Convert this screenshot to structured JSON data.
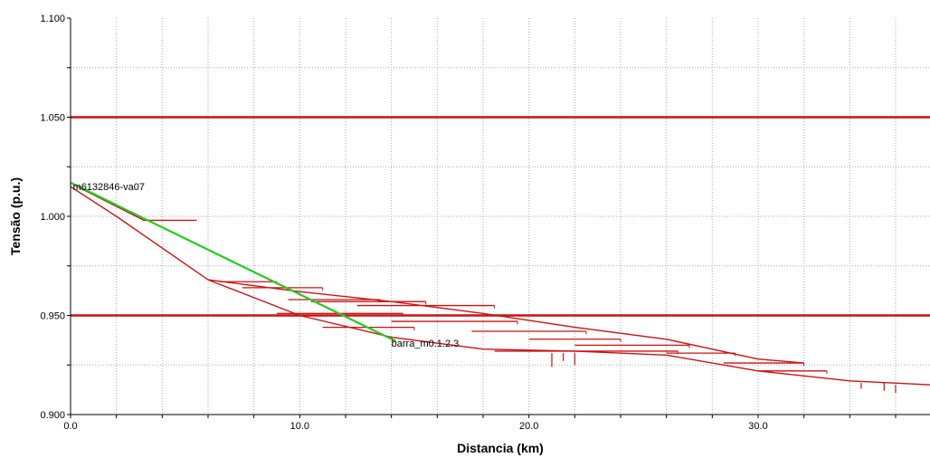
{
  "chart_data": {
    "type": "line",
    "xlabel": "Distancia (km)",
    "ylabel": "Tensão (p.u.)",
    "xlim": [
      0,
      37.5
    ],
    "ylim": [
      0.9,
      1.1
    ],
    "x_ticks": [
      0,
      10,
      20,
      30
    ],
    "x_tick_labels": [
      "0.0",
      "10.0",
      "20.0",
      "30.0"
    ],
    "y_ticks": [
      0.9,
      0.95,
      1.0,
      1.05,
      1.1
    ],
    "y_tick_labels": [
      "0.900",
      "0.950",
      "1.000",
      "1.050",
      "1.100"
    ],
    "grid": true,
    "limit_lines": [
      0.95,
      1.05
    ],
    "colors": {
      "feeder": "#cc1111",
      "highlight": "#22cc22",
      "limit": "#cc1111",
      "grid": "#aaaaaa"
    },
    "series": [
      {
        "role": "main-trunk",
        "color": "#cc1111",
        "x": [
          0,
          2,
          6,
          10,
          14,
          18,
          22,
          26,
          30,
          34,
          37.5
        ],
        "y": [
          1.015,
          1.0,
          0.968,
          0.95,
          0.939,
          0.933,
          0.932,
          0.93,
          0.922,
          0.917,
          0.915
        ]
      },
      {
        "role": "branch-a",
        "color": "#cc1111",
        "x": [
          6,
          10,
          14,
          18,
          22,
          26,
          30,
          32
        ],
        "y": [
          0.968,
          0.962,
          0.957,
          0.951,
          0.944,
          0.938,
          0.928,
          0.926
        ]
      },
      {
        "role": "branch-b",
        "color": "#cc1111",
        "x": [
          0.3,
          3.2,
          5.5
        ],
        "y": [
          1.015,
          0.998,
          0.998
        ]
      },
      {
        "role": "highlighted-path",
        "color": "#22cc22",
        "x": [
          0,
          14.2
        ],
        "y": [
          1.017,
          0.937
        ]
      }
    ],
    "laterals": [
      {
        "x1": 6.5,
        "x2": 9.0,
        "y": 0.967
      },
      {
        "x1": 7.5,
        "x2": 11.0,
        "y": 0.964
      },
      {
        "x1": 9.5,
        "x2": 13.5,
        "y": 0.958
      },
      {
        "x1": 10.5,
        "x2": 15.5,
        "y": 0.957
      },
      {
        "x1": 12.5,
        "x2": 18.5,
        "y": 0.955
      },
      {
        "x1": 9.0,
        "x2": 14.5,
        "y": 0.951
      },
      {
        "x1": 14.0,
        "x2": 19.5,
        "y": 0.947
      },
      {
        "x1": 11.0,
        "x2": 15.0,
        "y": 0.944
      },
      {
        "x1": 17.5,
        "x2": 22.5,
        "y": 0.942
      },
      {
        "x1": 20.0,
        "x2": 24.0,
        "y": 0.938
      },
      {
        "x1": 22.0,
        "x2": 27.0,
        "y": 0.935
      },
      {
        "x1": 26.0,
        "x2": 29.0,
        "y": 0.931
      },
      {
        "x1": 18.5,
        "x2": 26.5,
        "y": 0.932
      },
      {
        "x1": 28.5,
        "x2": 32.0,
        "y": 0.926
      },
      {
        "x1": 30.0,
        "x2": 33.0,
        "y": 0.922
      }
    ],
    "drops": [
      {
        "x": 21.0,
        "y1": 0.931,
        "y2": 0.924
      },
      {
        "x": 21.5,
        "y1": 0.931,
        "y2": 0.927
      },
      {
        "x": 22.0,
        "y1": 0.931,
        "y2": 0.925
      },
      {
        "x": 34.5,
        "y1": 0.916,
        "y2": 0.913
      },
      {
        "x": 35.5,
        "y1": 0.916,
        "y2": 0.912
      },
      {
        "x": 36.0,
        "y1": 0.915,
        "y2": 0.911
      }
    ],
    "annotations": [
      {
        "text": "m6132846-va07",
        "x": 0.1,
        "y": 1.015
      },
      {
        "text": "barra_m0.1.2.3",
        "x": 14.0,
        "y": 0.936
      }
    ]
  }
}
